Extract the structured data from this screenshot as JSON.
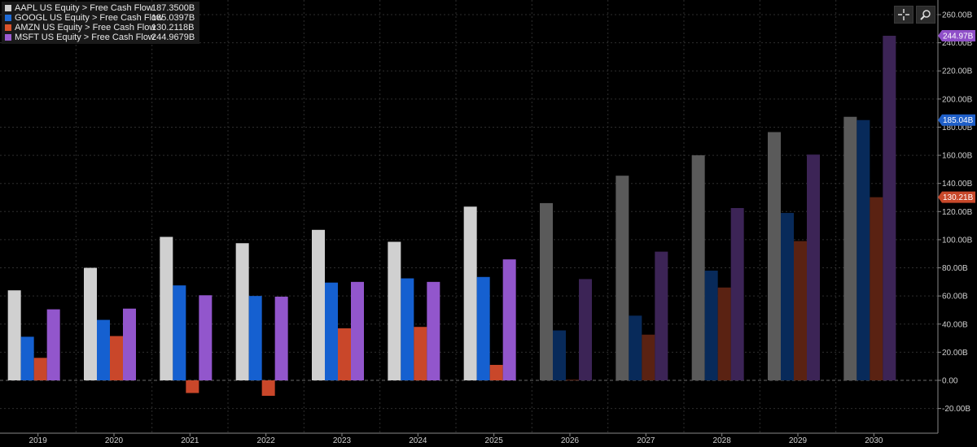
{
  "legend": [
    {
      "name": "AAPL US Equity > Free Cash Flow",
      "value": "187.3500B",
      "color": "#d0d0d0"
    },
    {
      "name": "GOOGL US Equity > Free Cash Flow",
      "value": "185.0397B",
      "color": "#1f6bd6"
    },
    {
      "name": "AMZN US Equity > Free Cash Flow",
      "value": "130.2118B",
      "color": "#d9532b"
    },
    {
      "name": "MSFT US Equity > Free Cash Flow",
      "value": "244.9679B",
      "color": "#9b5cd1"
    }
  ],
  "toolbar": {
    "crosshair_icon": "crosshair-icon",
    "zoom_icon": "zoom-icon"
  },
  "last_value_badges": [
    {
      "text": "244.97B",
      "value": 244.97,
      "color": "#8f4fc8"
    },
    {
      "text": "185.04B",
      "value": 185.04,
      "color": "#1f5fc8"
    },
    {
      "text": "130.21B",
      "value": 130.21,
      "color": "#c8482a"
    }
  ],
  "chart_data": {
    "type": "bar",
    "categories": [
      "2019",
      "2020",
      "2021",
      "2022",
      "2023",
      "2024",
      "2025",
      "2026",
      "2027",
      "2028",
      "2029",
      "2030"
    ],
    "estimate_from_index": 7,
    "y_axis": {
      "min": -30,
      "max": 265,
      "position": "right",
      "unit": "B",
      "ticks": [
        "260.00B",
        "240.00B",
        "220.00B",
        "200.00B",
        "180.00B",
        "160.00B",
        "140.00B",
        "120.00B",
        "100.00B",
        "80.00B",
        "60.00B",
        "40.00B",
        "20.00B",
        "0.00",
        "-20.00B"
      ],
      "tick_values": [
        260,
        240,
        220,
        200,
        180,
        160,
        140,
        120,
        100,
        80,
        60,
        40,
        20,
        0,
        -20
      ]
    },
    "grid": true,
    "legend_position": "top-left",
    "series": [
      {
        "name": "AAPL US Equity > Free Cash Flow",
        "color": "#d0d0d0",
        "estimate_color": "#5a5a5a",
        "values": [
          64,
          80,
          102,
          97.5,
          107,
          98.5,
          123.5,
          126,
          145.5,
          160,
          176.5,
          187.35
        ]
      },
      {
        "name": "GOOGL US Equity > Free Cash Flow",
        "color": "#1560d0",
        "estimate_color": "#082a5a",
        "values": [
          31,
          43,
          67.5,
          60,
          69.5,
          72.5,
          73.5,
          35.5,
          46,
          78,
          119,
          185.04
        ]
      },
      {
        "name": "AMZN US Equity > Free Cash Flow",
        "color": "#c9472a",
        "estimate_color": "#5a2212",
        "values": [
          16,
          31.5,
          -9,
          -11,
          37,
          38,
          11,
          0.5,
          32.5,
          66,
          99,
          130.21
        ]
      },
      {
        "name": "MSFT US Equity > Free Cash Flow",
        "color": "#9256cc",
        "estimate_color": "#3c2456",
        "values": [
          50.5,
          51,
          60.5,
          59.5,
          70,
          70,
          86,
          72,
          91.5,
          122.5,
          160.5,
          244.97
        ]
      }
    ]
  }
}
